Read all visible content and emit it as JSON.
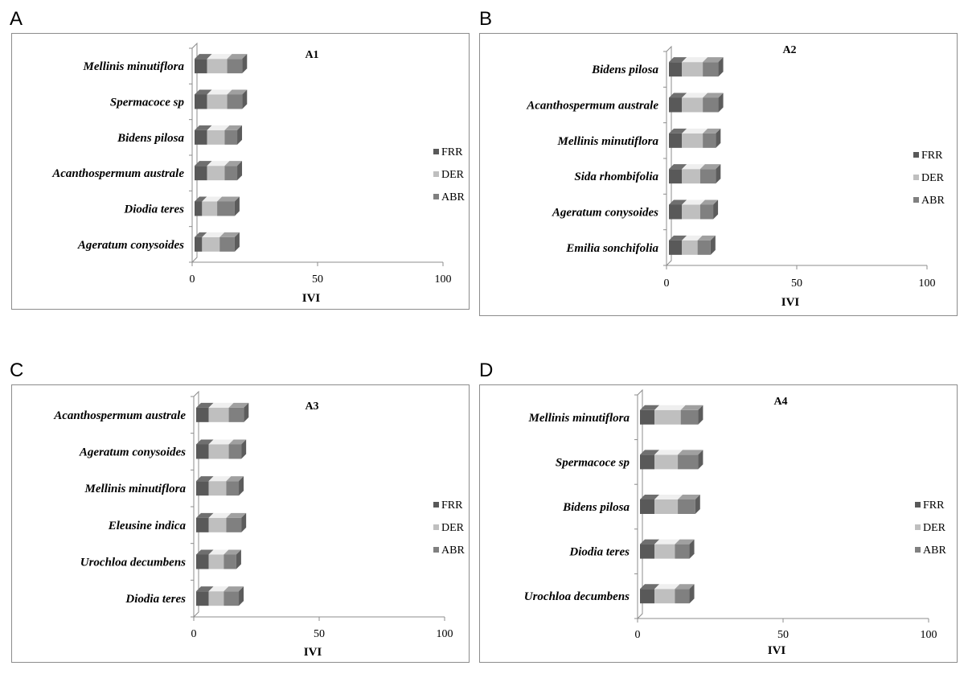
{
  "panels": [
    {
      "letter": "A"
    },
    {
      "letter": "B"
    },
    {
      "letter": "C"
    },
    {
      "letter": "D"
    }
  ],
  "colors": {
    "FRR": "#595959",
    "DER": "#bfbfbf",
    "ABR": "#808080"
  },
  "chart_data": [
    {
      "type": "bar",
      "stacked": true,
      "orientation": "horizontal",
      "style": "3d",
      "title": "A1",
      "xlabel": "IVI",
      "xlim": [
        0,
        100
      ],
      "xticks": [
        0,
        50,
        100
      ],
      "categories": [
        "Mellinis minutiflora",
        "Spermacoce sp",
        "Bidens pilosa",
        "Acanthospermum australe",
        "Diodia teres",
        "Ageratum conysoides"
      ],
      "series": [
        {
          "name": "FRR",
          "values": [
            5,
            5,
            5,
            5,
            3,
            3
          ]
        },
        {
          "name": "DER",
          "values": [
            8,
            8,
            7,
            7,
            6,
            7
          ]
        },
        {
          "name": "ABR",
          "values": [
            6,
            6,
            5,
            5,
            7,
            6
          ]
        }
      ],
      "legend": "right"
    },
    {
      "type": "bar",
      "stacked": true,
      "orientation": "horizontal",
      "style": "3d",
      "title": "A2",
      "xlabel": "IVI",
      "xlim": [
        0,
        100
      ],
      "xticks": [
        0,
        50,
        100
      ],
      "categories": [
        "Bidens pilosa",
        "Acanthospermum australe",
        "Mellinis minutiflora",
        "Sida rhombifolia",
        "Ageratum conysoides",
        "Emilia sonchifolia"
      ],
      "series": [
        {
          "name": "FRR",
          "values": [
            5,
            5,
            5,
            5,
            5,
            5
          ]
        },
        {
          "name": "DER",
          "values": [
            8,
            8,
            8,
            7,
            7,
            6
          ]
        },
        {
          "name": "ABR",
          "values": [
            6,
            6,
            5,
            6,
            5,
            5
          ]
        }
      ],
      "legend": "right"
    },
    {
      "type": "bar",
      "stacked": true,
      "orientation": "horizontal",
      "style": "3d",
      "title": "A3",
      "xlabel": "IVI",
      "xlim": [
        0,
        100
      ],
      "xticks": [
        0,
        50,
        100
      ],
      "categories": [
        "Acanthospermum australe",
        "Ageratum conysoides",
        "Mellinis minutiflora",
        "Eleusine indica",
        "Urochloa decumbens",
        "Diodia teres"
      ],
      "series": [
        {
          "name": "FRR",
          "values": [
            5,
            5,
            5,
            5,
            5,
            5
          ]
        },
        {
          "name": "DER",
          "values": [
            8,
            8,
            7,
            7,
            6,
            6
          ]
        },
        {
          "name": "ABR",
          "values": [
            6,
            5,
            5,
            6,
            5,
            6
          ]
        }
      ],
      "legend": "right"
    },
    {
      "type": "bar",
      "stacked": true,
      "orientation": "horizontal",
      "style": "3d",
      "title": "A4",
      "xlabel": "IVI",
      "xlim": [
        0,
        100
      ],
      "xticks": [
        0,
        50,
        100
      ],
      "categories": [
        "Mellinis minutiflora",
        "Spermacoce sp",
        "Bidens pilosa",
        "Diodia teres",
        "Urochloa decumbens"
      ],
      "series": [
        {
          "name": "FRR",
          "values": [
            5,
            5,
            5,
            5,
            5
          ]
        },
        {
          "name": "DER",
          "values": [
            9,
            8,
            8,
            7,
            7
          ]
        },
        {
          "name": "ABR",
          "values": [
            6,
            7,
            6,
            5,
            5
          ]
        }
      ],
      "legend": "right"
    }
  ]
}
